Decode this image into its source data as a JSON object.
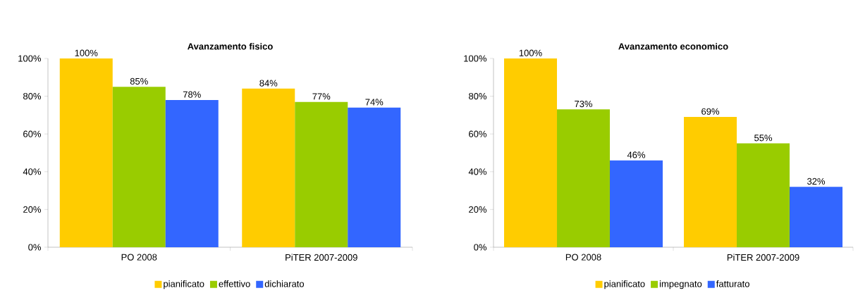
{
  "chart_data": [
    {
      "type": "bar",
      "title": "Avanzamento fisico",
      "categories": [
        "PO 2008",
        "PiTER 2007-2009"
      ],
      "series": [
        {
          "name": "pianificato",
          "color": "#ffcc00",
          "values": [
            100,
            84
          ],
          "value_labels": [
            "100%",
            "84%"
          ]
        },
        {
          "name": "effettivo",
          "color": "#99cc00",
          "values": [
            85,
            77
          ],
          "value_labels": [
            "85%",
            "77%"
          ]
        },
        {
          "name": "dichiarato",
          "color": "#3366ff",
          "values": [
            78,
            74
          ],
          "value_labels": [
            "78%",
            "74%"
          ]
        }
      ],
      "ylim": [
        0,
        100
      ],
      "yticks": [
        {
          "value": 0,
          "label": "0%"
        },
        {
          "value": 20,
          "label": "20%"
        },
        {
          "value": 40,
          "label": "40%"
        },
        {
          "value": 60,
          "label": "60%"
        },
        {
          "value": 80,
          "label": "80%"
        },
        {
          "value": 100,
          "label": "100%"
        }
      ],
      "legend": "bottom"
    },
    {
      "type": "bar",
      "title": "Avanzamento economico",
      "categories": [
        "PO 2008",
        "PiTER 2007-2009"
      ],
      "series": [
        {
          "name": "pianificato",
          "color": "#ffcc00",
          "values": [
            100,
            69
          ],
          "value_labels": [
            "100%",
            "69%"
          ]
        },
        {
          "name": "impegnato",
          "color": "#99cc00",
          "values": [
            73,
            55
          ],
          "value_labels": [
            "73%",
            "55%"
          ]
        },
        {
          "name": "fatturato",
          "color": "#3366ff",
          "values": [
            46,
            32
          ],
          "value_labels": [
            "46%",
            "32%"
          ]
        }
      ],
      "ylim": [
        0,
        100
      ],
      "yticks": [
        {
          "value": 0,
          "label": "0%"
        },
        {
          "value": 20,
          "label": "20%"
        },
        {
          "value": 40,
          "label": "40%"
        },
        {
          "value": 60,
          "label": "60%"
        },
        {
          "value": 80,
          "label": "80%"
        },
        {
          "value": 100,
          "label": "100%"
        }
      ],
      "legend": "bottom"
    }
  ]
}
